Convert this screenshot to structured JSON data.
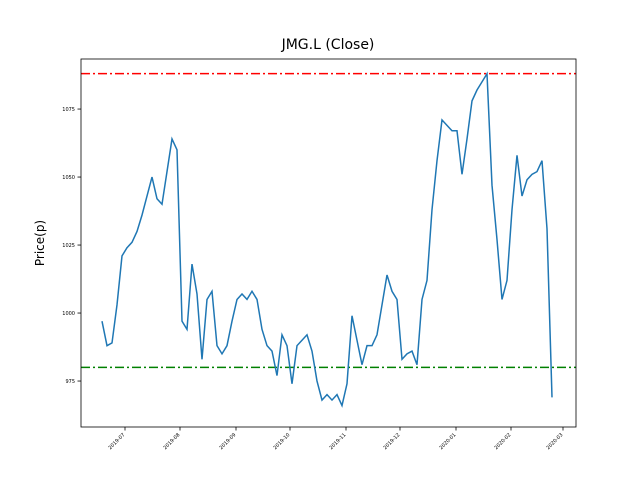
{
  "chart_data": {
    "type": "line",
    "title": "JMG.L (Close)",
    "ylabel": "Price(p)",
    "series": [
      {
        "color": "#1f77b4",
        "values": [
          997,
          988,
          989,
          1003,
          1021,
          1024,
          1026,
          1030,
          1036,
          1043,
          1050,
          1042,
          1040,
          1052,
          1064,
          1060,
          997,
          994,
          1018,
          1007,
          983,
          1005,
          1008,
          988,
          985,
          988,
          997,
          1005,
          1007,
          1005,
          1008,
          1005,
          994,
          988,
          986,
          977,
          992,
          988,
          974,
          988,
          990,
          992,
          986,
          975,
          968,
          970,
          968,
          970,
          966,
          974,
          999,
          990,
          981,
          988,
          988,
          992,
          1003,
          1014,
          1008,
          1005,
          983,
          985,
          986,
          981,
          1005,
          1012,
          1038,
          1056,
          1071,
          1069,
          1067,
          1067,
          1051,
          1064,
          1078,
          1082,
          1085,
          1088,
          1047,
          1027,
          1005,
          1012,
          1038,
          1058,
          1043,
          1049,
          1051,
          1052,
          1056,
          1031,
          969
        ]
      }
    ],
    "hlines": [
      {
        "value": 1088,
        "color": "#ff0000"
      },
      {
        "value": 980,
        "color": "#008000"
      }
    ],
    "xlim": [
      -4.2,
      94.8
    ],
    "xticks": [
      {
        "value": 4.6,
        "label": "2019-07"
      },
      {
        "value": 15.6,
        "label": "2019-08"
      },
      {
        "value": 26.8,
        "label": "2019-09"
      },
      {
        "value": 37.6,
        "label": "2019-10"
      },
      {
        "value": 48.8,
        "label": "2019-11"
      },
      {
        "value": 59.6,
        "label": "2019-12"
      },
      {
        "value": 70.8,
        "label": "2020-01"
      },
      {
        "value": 81.8,
        "label": "2020-02"
      },
      {
        "value": 92.2,
        "label": "2020-03"
      }
    ],
    "ylim": [
      958.1,
      1093.4
    ],
    "yticks": [
      975,
      1000,
      1025,
      1050,
      1075
    ]
  }
}
